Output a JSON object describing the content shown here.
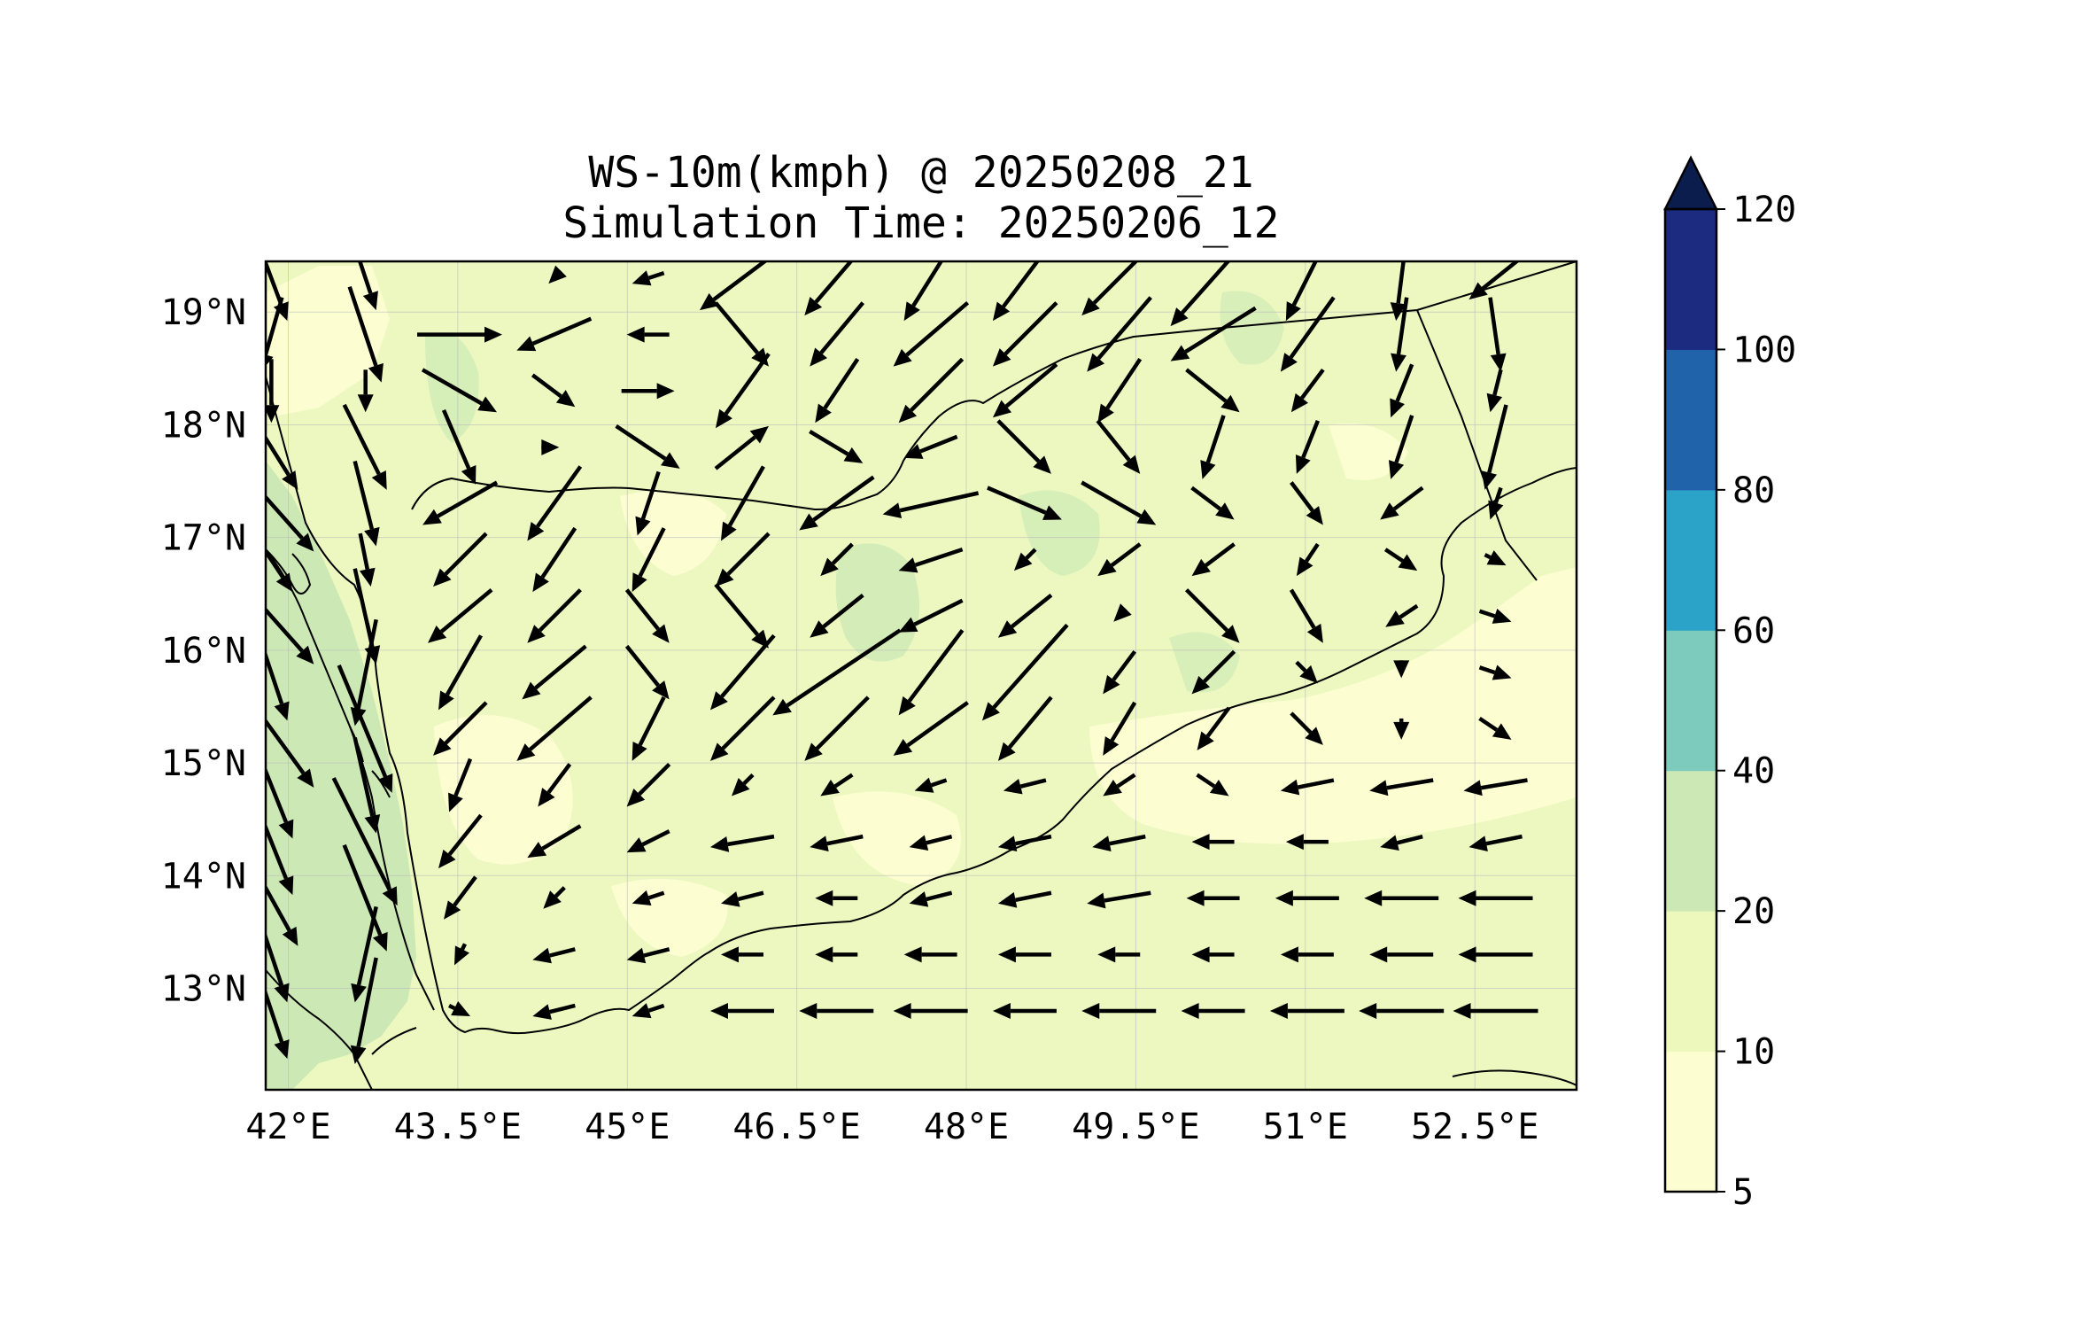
{
  "title": {
    "line1": "WS-10m(kmph) @ 20250208_21",
    "line2": "Simulation Time: 20250206_12"
  },
  "map": {
    "lon_range": [
      41.8,
      53.4
    ],
    "lat_range": [
      12.1,
      19.45
    ],
    "lon_ticks": [
      {
        "value": 42,
        "label": "42°E"
      },
      {
        "value": 43.5,
        "label": "43.5°E"
      },
      {
        "value": 45,
        "label": "45°E"
      },
      {
        "value": 46.5,
        "label": "46.5°E"
      },
      {
        "value": 48,
        "label": "48°E"
      },
      {
        "value": 49.5,
        "label": "49.5°E"
      },
      {
        "value": 51,
        "label": "51°E"
      },
      {
        "value": 52.5,
        "label": "52.5°E"
      }
    ],
    "lat_ticks": [
      {
        "value": 19,
        "label": "19°N"
      },
      {
        "value": 18,
        "label": "18°N"
      },
      {
        "value": 17,
        "label": "17°N"
      },
      {
        "value": 16,
        "label": "16°N"
      },
      {
        "value": 15,
        "label": "15°N"
      },
      {
        "value": 14,
        "label": "14°N"
      },
      {
        "value": 13,
        "label": "13°N"
      }
    ],
    "gridlines": true,
    "background_color": "#edf8c0",
    "coastline_color": "#000000"
  },
  "colorbar": {
    "levels": [
      5,
      10,
      20,
      40,
      60,
      80,
      100,
      120
    ],
    "labels": [
      "5",
      "10",
      "20",
      "40",
      "60",
      "80",
      "100",
      "120"
    ],
    "colors": [
      "#fcfed2",
      "#edf8bc",
      "#cce9b5",
      "#7dcbbc",
      "#2ba2c7",
      "#2163aa",
      "#1c2b80"
    ],
    "extend_color": "#0b1d4d",
    "extend": "max"
  },
  "chart_data": {
    "type": "vector_field",
    "variable": "WS-10m(kmph)",
    "valid_time": "20250208_21",
    "simulation_time": "20250206_12",
    "grid": {
      "lon0": 41.85,
      "dlon": 0.8333,
      "lat0": 19.3,
      "dlat": -0.5,
      "cols": 14,
      "rows": 14
    },
    "u_rows": [
      [
        3,
        2,
        0,
        -1,
        -3,
        -8,
        -6,
        -5,
        -6,
        -7,
        -8,
        -4,
        -1,
        -5
      ],
      [
        -2,
        3,
        8,
        -7,
        -4,
        5,
        -5,
        -7,
        -6,
        -6,
        -8,
        -5,
        -1,
        1
      ],
      [
        0,
        0,
        7,
        4,
        5,
        -5,
        -4,
        -6,
        -6,
        -4,
        5,
        -3,
        -2,
        -1
      ],
      [
        5,
        4,
        3,
        1,
        6,
        5,
        5,
        -5,
        5,
        4,
        -2,
        -2,
        -2,
        -2
      ],
      [
        8,
        2,
        -7,
        -5,
        -2,
        -4,
        -7,
        -9,
        7,
        7,
        4,
        3,
        -4,
        -1
      ],
      [
        4,
        1,
        -5,
        -4,
        -3,
        -5,
        -3,
        -6,
        -2,
        -4,
        -4,
        -2,
        3,
        2
      ],
      [
        8,
        2,
        -6,
        -5,
        4,
        5,
        -5,
        -6,
        -5,
        -1,
        5,
        3,
        -3,
        3
      ],
      [
        3,
        -2,
        -4,
        -6,
        4,
        -6,
        -12,
        -6,
        -8,
        -3,
        -4,
        2,
        0,
        3
      ],
      [
        8,
        5,
        -5,
        -7,
        -3,
        -6,
        -6,
        -7,
        -5,
        -3,
        -3,
        3,
        0,
        3
      ],
      [
        4,
        2,
        -2,
        -3,
        -4,
        -2,
        -3,
        -3,
        -4,
        -3,
        3,
        -5,
        -6,
        -6
      ],
      [
        4,
        6,
        -4,
        -5,
        -4,
        -6,
        -5,
        -4,
        -5,
        -5,
        -4,
        -4,
        -4,
        -5
      ],
      [
        5,
        4,
        -3,
        -2,
        -3,
        -4,
        -4,
        -4,
        -5,
        -6,
        -5,
        -6,
        -7,
        -7
      ],
      [
        3,
        -2,
        -1,
        -4,
        -4,
        -4,
        -4,
        -5,
        -5,
        -4,
        -4,
        -5,
        -6,
        -7
      ],
      [
        3,
        -2,
        2,
        -4,
        -3,
        -6,
        -7,
        -7,
        -6,
        -7,
        -6,
        -7,
        -8,
        -8
      ]
    ],
    "v_rows": [
      [
        -8,
        -6,
        0,
        -1,
        -1,
        -6,
        -7,
        -8,
        -8,
        -7,
        -9,
        -8,
        -8,
        -4
      ],
      [
        -7,
        -9,
        0,
        -3,
        0,
        -6,
        -6,
        -6,
        -6,
        -7,
        -5,
        -7,
        -7,
        -7
      ],
      [
        -6,
        -4,
        -4,
        -3,
        0,
        -7,
        -6,
        -6,
        -5,
        -6,
        -4,
        -4,
        -5,
        -4
      ],
      [
        -8,
        -8,
        -7,
        0,
        -4,
        4,
        -3,
        -2,
        -5,
        -5,
        -6,
        -5,
        -6,
        -8
      ],
      [
        -9,
        -8,
        -4,
        -7,
        -6,
        -7,
        -5,
        -2,
        -3,
        -4,
        -3,
        -4,
        -3,
        -3
      ],
      [
        -6,
        -5,
        -5,
        -6,
        -6,
        -5,
        -3,
        -2,
        -2,
        -3,
        -3,
        -3,
        -2,
        -1
      ],
      [
        -9,
        -9,
        -5,
        -5,
        -5,
        -6,
        -4,
        -3,
        -4,
        -1,
        -5,
        -5,
        -2,
        -1
      ],
      [
        -9,
        -10,
        -7,
        -5,
        -5,
        -7,
        -8,
        -8,
        -9,
        -4,
        -4,
        -2,
        -1,
        -1
      ],
      [
        -11,
        -12,
        -5,
        -6,
        -6,
        -6,
        -6,
        -5,
        -6,
        -5,
        -4,
        -3,
        -2,
        -2
      ],
      [
        -10,
        -9,
        -5,
        -4,
        -4,
        -2,
        -2,
        -1,
        -1,
        -2,
        -2,
        -1,
        -1,
        -1
      ],
      [
        -10,
        -12,
        -5,
        -3,
        -2,
        -1,
        -1,
        -1,
        -1,
        -1,
        0,
        0,
        -1,
        -1
      ],
      [
        -9,
        -10,
        -4,
        -2,
        -1,
        -1,
        0,
        -1,
        -1,
        -1,
        0,
        0,
        0,
        0
      ],
      [
        -9,
        -9,
        -2,
        -1,
        -1,
        0,
        0,
        0,
        0,
        0,
        0,
        0,
        0,
        0
      ],
      [
        -9,
        -10,
        -1,
        -1,
        -1,
        0,
        0,
        0,
        0,
        0,
        0,
        0,
        0,
        0
      ]
    ]
  }
}
